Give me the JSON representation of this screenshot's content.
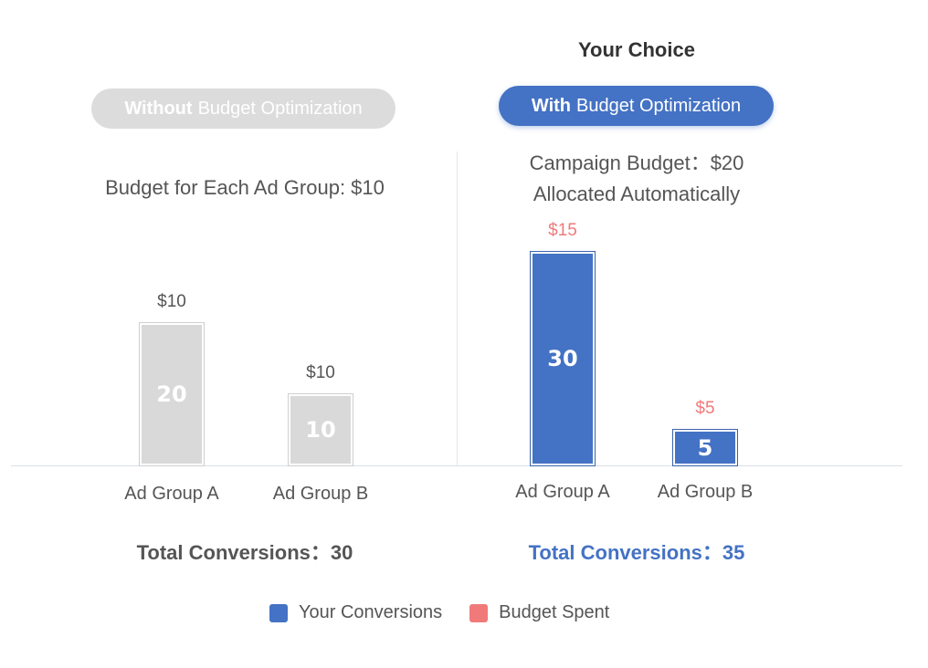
{
  "header": {
    "your_choice": "Your Choice"
  },
  "left": {
    "pill_bold": "Without",
    "pill_rest": "Budget Optimization",
    "description": "Budget for Each Ad Group: $10",
    "total": "Total Conversions：30"
  },
  "right": {
    "pill_bold": "With",
    "pill_rest": "Budget Optimization",
    "description_line1": "Campaign Budget：$20",
    "description_line2": "Allocated Automatically",
    "total": "Total Conversions：35"
  },
  "legend": {
    "conversions": "Your Conversions",
    "budget": "Budget Spent"
  },
  "colors": {
    "conversions": "#4472c4",
    "budget": "#f07a7a",
    "inactive": "#d9d9d9",
    "budget_label_left": "#555555"
  },
  "chart_data": [
    {
      "type": "bar",
      "panel": "Without Budget Optimization",
      "categories": [
        "Ad Group A",
        "Ad Group B"
      ],
      "values": [
        20,
        10
      ],
      "budget_labels": [
        "$10",
        "$10"
      ],
      "ylim": [
        0,
        35
      ]
    },
    {
      "type": "bar",
      "panel": "With Budget Optimization",
      "categories": [
        "Ad Group A",
        "Ad Group B"
      ],
      "values": [
        30,
        5
      ],
      "budget_labels": [
        "$15",
        "$5"
      ],
      "ylim": [
        0,
        35
      ]
    }
  ]
}
